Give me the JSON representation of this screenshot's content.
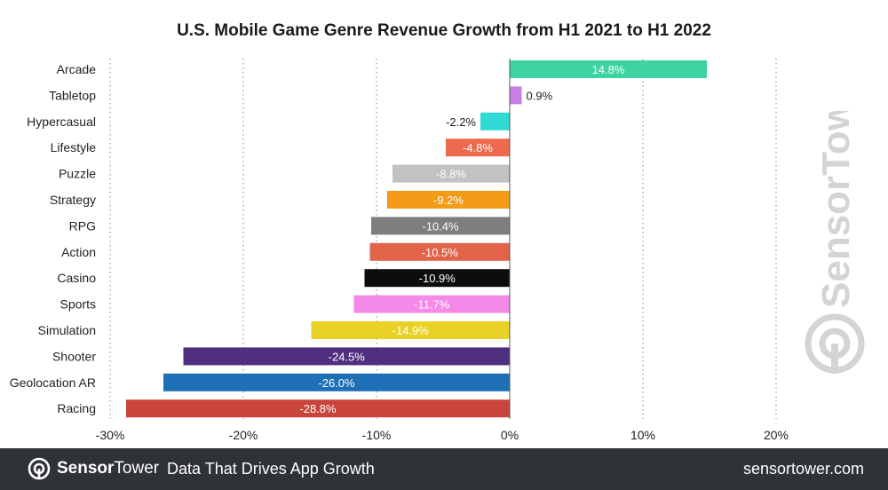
{
  "footer": {
    "brand_bold": "Sensor",
    "brand_light": "Tower",
    "tagline": "Data That Drives App Growth",
    "url": "sensortower.com"
  },
  "watermark": {
    "text": "SensorTower"
  },
  "chart_data": {
    "type": "bar",
    "orientation": "horizontal",
    "title": "U.S. Mobile Game Genre Revenue Growth from H1 2021 to H1 2022",
    "categories": [
      "Arcade",
      "Tabletop",
      "Hypercasual",
      "Lifestyle",
      "Puzzle",
      "Strategy",
      "RPG",
      "Action",
      "Casino",
      "Sports",
      "Simulation",
      "Shooter",
      "Geolocation AR",
      "Racing"
    ],
    "values": [
      14.8,
      0.9,
      -2.2,
      -4.8,
      -8.8,
      -9.2,
      -10.4,
      -10.5,
      -10.9,
      -11.7,
      -14.9,
      -24.5,
      -26.0,
      -28.8
    ],
    "labels": [
      "14.8%",
      "0.9%",
      "-2.2%",
      "-4.8%",
      "-8.8%",
      "-9.2%",
      "-10.4%",
      "-10.5%",
      "-10.9%",
      "-11.7%",
      "-14.9%",
      "-24.5%",
      "-26.0%",
      "-28.8%"
    ],
    "colors": [
      "#3dd4a0",
      "#c97ee6",
      "#2fd9d4",
      "#ee6a4e",
      "#c2c2c2",
      "#f39a16",
      "#7e7e7e",
      "#e0634a",
      "#0d0d0d",
      "#f489e8",
      "#ead128",
      "#4f2f7e",
      "#1e6fb6",
      "#c9453b"
    ],
    "label_colors": [
      "#ffffff",
      "#222222",
      "#222222",
      "#ffffff",
      "#ffffff",
      "#ffffff",
      "#ffffff",
      "#ffffff",
      "#ffffff",
      "#ffffff",
      "#ffffff",
      "#ffffff",
      "#ffffff",
      "#ffffff"
    ],
    "label_outside": [
      false,
      true,
      true,
      false,
      false,
      false,
      false,
      false,
      false,
      false,
      false,
      false,
      false,
      false
    ],
    "xlim": [
      -30,
      20
    ],
    "xticks": [
      -30,
      -20,
      -10,
      0,
      10,
      20
    ],
    "xtick_labels": [
      "-30%",
      "-20%",
      "-10%",
      "0%",
      "10%",
      "20%"
    ],
    "xlabel": "",
    "ylabel": "",
    "grid": "vertical dotted",
    "legend": "none"
  }
}
